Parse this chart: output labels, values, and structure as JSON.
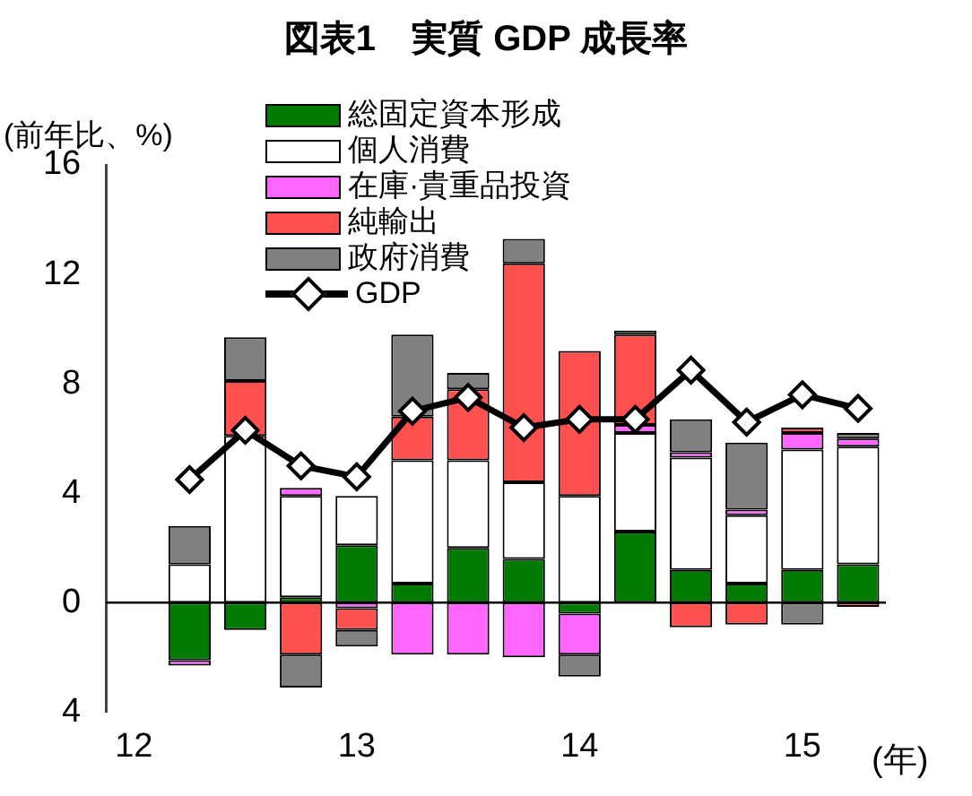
{
  "chart_data": {
    "type": "bar",
    "stacked": true,
    "title": "図表1　実質 GDP 成長率",
    "ylabel": "(前年比、%)",
    "xlabel": "(年)",
    "categories": [
      "12",
      null,
      null,
      null,
      "13",
      null,
      null,
      null,
      "14",
      null,
      null,
      null,
      "15",
      null
    ],
    "ylim": [
      -4,
      16
    ],
    "yticks": [
      {
        "value": -4,
        "label": "4"
      },
      0,
      4,
      8,
      12,
      16
    ],
    "grid": false,
    "legend": "top left",
    "ref_lines": [
      {
        "axis": "y",
        "value": 0,
        "color": "#000000"
      }
    ],
    "series": [
      {
        "name": "総固定資本形成",
        "color": "#007a00",
        "values": [
          null,
          -2.1,
          -1.0,
          0.2,
          2.1,
          0.7,
          2.0,
          1.6,
          -0.4,
          2.6,
          1.2,
          0.7,
          1.2,
          1.4
        ]
      },
      {
        "name": "個人消費",
        "color": "#ffffff",
        "values": [
          null,
          1.4,
          6.1,
          3.7,
          1.8,
          4.5,
          3.2,
          2.8,
          3.9,
          3.6,
          4.1,
          2.5,
          4.4,
          4.3
        ]
      },
      {
        "name": "在庫·貴重品投資",
        "color": "#ff66ff",
        "values": [
          null,
          -0.2,
          null,
          0.3,
          -0.2,
          -1.9,
          -1.9,
          -2.0,
          -1.5,
          0.3,
          0.2,
          0.2,
          0.6,
          0.3
        ]
      },
      {
        "name": "純輸出",
        "color": "#ff5050",
        "values": [
          null,
          null,
          2.0,
          -1.9,
          -0.8,
          1.6,
          2.6,
          8.0,
          5.3,
          3.3,
          -0.9,
          -0.8,
          0.2,
          -0.15
        ]
      },
      {
        "name": "政府消費",
        "color": "#808080",
        "values": [
          null,
          1.4,
          1.6,
          -1.2,
          -0.6,
          3.0,
          0.6,
          0.9,
          -0.8,
          0.15,
          1.2,
          2.45,
          -0.8,
          0.2
        ]
      },
      {
        "name": "GDP",
        "type": "line",
        "color": "#000000",
        "marker": "diamond",
        "values": [
          null,
          4.5,
          6.3,
          5.0,
          4.6,
          7.0,
          7.5,
          6.4,
          6.7,
          6.7,
          8.5,
          6.6,
          7.6,
          7.1
        ]
      }
    ]
  }
}
